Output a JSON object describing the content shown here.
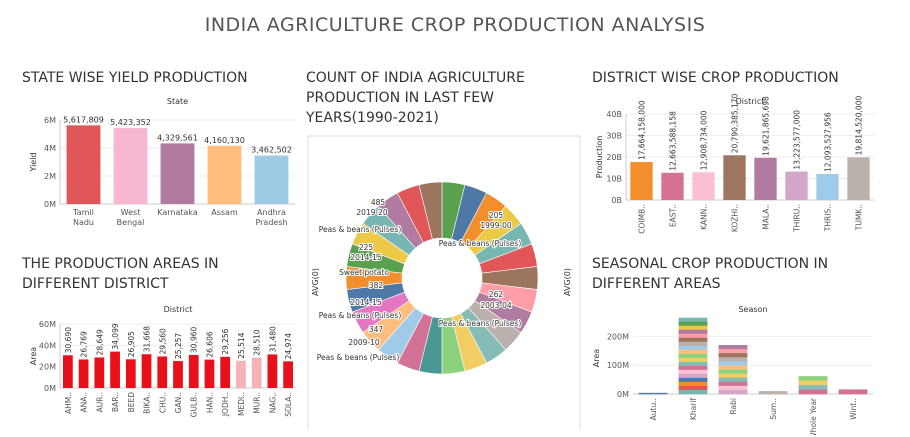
{
  "dashboard_title": "INDIA AGRICULTURE CROP PRODUCTION ANALYSIS",
  "sections": {
    "state": "STATE WISE YIELD PRODUCTION",
    "count": "COUNT OF INDIA AGRICULTURE PRODUCTION IN LAST FEW YEARS(1990-2021)",
    "district_crop": "DISTRICT WISE CROP PRODUCTION",
    "areas": "THE PRODUCTION AREAS IN DIFFERENT DISTRICT",
    "seasonal": "SEASONAL CROP PRODUCTION IN DIFFERENT AREAS"
  },
  "chart_data": [
    {
      "id": "state_yield",
      "type": "bar",
      "header": "State",
      "ylabel": "Yield",
      "ylim": [
        0,
        6000000
      ],
      "yticks": [
        "0M",
        "2M",
        "4M",
        "6M"
      ],
      "categories": [
        "Tamil Nadu",
        "West Bengal",
        "Karnataka",
        "Assam",
        "Andhra Pradesh"
      ],
      "labels": [
        "5,617,809",
        "5,423,352",
        "4,329,561",
        "4,160,130",
        "3,462,502"
      ],
      "values": [
        5617809,
        5423352,
        4329561,
        4160130,
        3462502
      ],
      "colors": [
        "#e15759",
        "#f7b6d2",
        "#b07aa1",
        "#ffbe7d",
        "#9fcae6"
      ]
    },
    {
      "id": "year_count",
      "type": "pie",
      "axis_left": "AVG(0)",
      "axis_right": "AVG(0)",
      "zero_left": "0",
      "zero_right": "0",
      "labels": [
        "485",
        "2019-20",
        "Peas & beans (Pulses)",
        "225",
        "2014-15",
        "Sweet potato",
        "382",
        "2014-15",
        "Peas & beans (Pulses)",
        "347",
        "2009-10",
        "Peas & beans (Pulses)",
        "205",
        "1999-00",
        "Peas & beans (Pulses)",
        "262",
        "2003-04",
        "Peas & beans (Pulses)"
      ]
    },
    {
      "id": "district_crop",
      "type": "bar",
      "header": "District",
      "ylabel": "Production",
      "ylim": [
        0,
        40000000000
      ],
      "yticks": [
        "0B",
        "10B",
        "20B",
        "30B",
        "40B"
      ],
      "categories": [
        "COIMB..",
        "EAST..",
        "KANN..",
        "KOZHI..",
        "MALA..",
        "THIRU..",
        "THRIS..",
        "TUMK.."
      ],
      "labels": [
        "17,664,158,000",
        "12,663,588,158",
        "12,908,734,000",
        "20,790,385,170",
        "19,621,865,698",
        "13,223,577,000",
        "12,093,527,956",
        "19,814,520,000"
      ],
      "values": [
        17664158000,
        12663588158,
        12908734000,
        20790385170,
        19621865698,
        13223577000,
        12093527956,
        19814520000
      ],
      "colors": [
        "#f28e2b",
        "#d37295",
        "#fabfd2",
        "#9d7660",
        "#b07aa1",
        "#d4a6c8",
        "#a0cbe8",
        "#bab0ac"
      ]
    },
    {
      "id": "district_area",
      "type": "bar",
      "header": "District",
      "ylabel": "Area",
      "ylim": [
        0,
        60000000
      ],
      "yticks": [
        "0M",
        "20M",
        "40M",
        "60M"
      ],
      "categories": [
        "AHM..",
        "ANA..",
        "AUR..",
        "BAR..",
        "BEED",
        "BIKA..",
        "CHU..",
        "GAN..",
        "GULB..",
        "HAN..",
        "JODH..",
        "MEDI..",
        "MUR..",
        "NAG..",
        "SOLA.."
      ],
      "labels": [
        "30,690",
        "26,769",
        "28,649",
        "34,099",
        "26,905",
        "31,668",
        "29,560",
        "25,257",
        "30,960",
        "26,606",
        "29,256",
        "25,514",
        "28,510",
        "31,480",
        "24,974"
      ],
      "values": [
        30690000,
        26769000,
        28649000,
        34099000,
        26905000,
        31668000,
        29560000,
        25257000,
        30960000,
        26606000,
        29256000,
        25514000,
        28510000,
        31480000,
        24974000
      ],
      "colors": [
        "#e8101a",
        "#e8101a",
        "#e8101a",
        "#e8101a",
        "#e8101a",
        "#e8101a",
        "#e8101a",
        "#e8101a",
        "#e8101a",
        "#e8101a",
        "#e8101a",
        "#f4b3b6",
        "#f4b3b6",
        "#e8101a",
        "#e8101a"
      ]
    },
    {
      "id": "seasonal",
      "type": "bar",
      "header": "Season",
      "ylabel": "Area",
      "ylim": [
        0,
        250000000
      ],
      "yticks": [
        "0M",
        "100M",
        "200M"
      ],
      "categories": [
        "Autu..",
        "Kharif",
        "Rabi",
        "Sum..",
        "Whole Year",
        "Wint.."
      ],
      "values": [
        4000000,
        265000000,
        170000000,
        10000000,
        62000000,
        16000000
      ],
      "colors": [
        "#8cd17d",
        "#4e79a7",
        "#b6992d",
        "#e15759",
        "#f1ce63",
        "#d37295"
      ]
    }
  ]
}
